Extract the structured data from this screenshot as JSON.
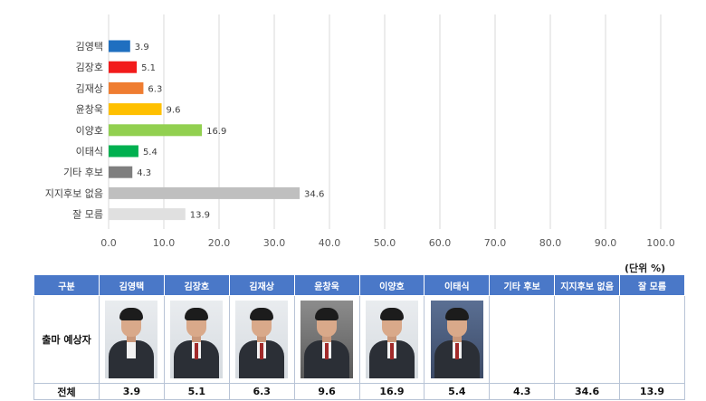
{
  "chart_data": {
    "type": "bar",
    "orientation": "horizontal",
    "categories": [
      "김영택",
      "김장호",
      "김재상",
      "윤창욱",
      "이양호",
      "이태식",
      "기타 후보",
      "지지후보 없음",
      "잘 모름"
    ],
    "values": [
      3.9,
      5.1,
      6.3,
      9.6,
      16.9,
      5.4,
      4.3,
      34.6,
      13.9
    ],
    "colors": [
      "#1f6fc0",
      "#f21b1b",
      "#ef7d31",
      "#ffc000",
      "#92d050",
      "#00b050",
      "#7f7f7f",
      "#bfbfbf",
      "#e0e0e0"
    ],
    "value_labels": [
      "3.9",
      "5.1",
      "6.3",
      "9.6",
      "16.9",
      "5.4",
      "4.3",
      "34.6",
      "13.9"
    ],
    "xlim": [
      0,
      100
    ],
    "xticks": [
      "0.0",
      "10.0",
      "20.0",
      "30.0",
      "40.0",
      "50.0",
      "60.0",
      "70.0",
      "80.0",
      "90.0",
      "100.0"
    ],
    "grid": true,
    "title": "",
    "xlabel": "",
    "ylabel": ""
  },
  "unit_label": "(단위 %)",
  "table": {
    "header_label": "구분",
    "header_color": "#4a78c8",
    "columns": [
      "김영택",
      "김장호",
      "김재상",
      "윤창욱",
      "이양호",
      "이태식",
      "기타 후보",
      "지지후보 없음",
      "잘 모름"
    ],
    "photo_row_label": "출마 예상자",
    "photos": [
      "portrait-icon",
      "portrait-icon",
      "portrait-icon",
      "portrait-icon",
      "portrait-icon",
      "portrait-icon",
      "",
      "",
      ""
    ],
    "total_label": "전체",
    "totals": [
      "3.9",
      "5.1",
      "6.3",
      "9.6",
      "16.9",
      "5.4",
      "4.3",
      "34.6",
      "13.9"
    ]
  }
}
